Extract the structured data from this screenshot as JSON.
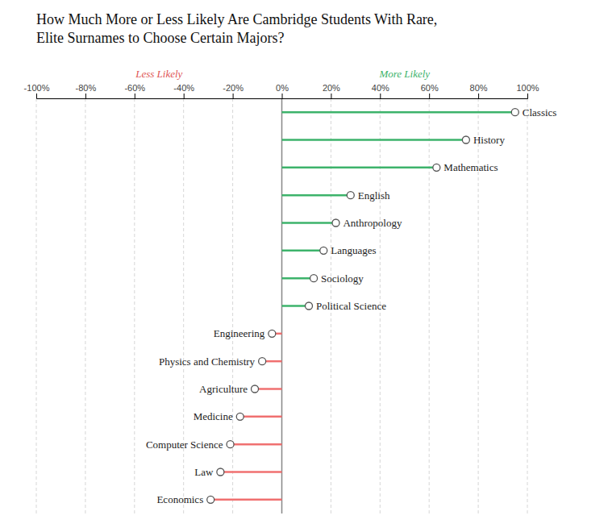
{
  "chart_data": {
    "type": "lollipop",
    "orientation": "horizontal",
    "title": "How Much More or Less Likely Are Cambridge Students With Rare,\nElite Surnames to Choose Certain Majors?",
    "categories": [
      "Classics",
      "History",
      "Mathematics",
      "English",
      "Anthropology",
      "Languages",
      "Sociology",
      "Political Science",
      "Engineering",
      "Physics and Chemistry",
      "Agriculture",
      "Medicine",
      "Computer Science",
      "Law",
      "Economics"
    ],
    "values": [
      95,
      75,
      63,
      28,
      22,
      17,
      13,
      11,
      -4,
      -8,
      -11,
      -17,
      -21,
      -25,
      -29
    ],
    "colors": [
      "#3db36b",
      "#3db36b",
      "#3db36b",
      "#3db36b",
      "#3db36b",
      "#3db36b",
      "#3db36b",
      "#3db36b",
      "#f07070",
      "#f07070",
      "#f07070",
      "#f07070",
      "#f07070",
      "#f07070",
      "#f07070"
    ],
    "xlim": [
      -100,
      100
    ],
    "xticks": [
      {
        "value": -100,
        "label": "-100%"
      },
      {
        "value": -80,
        "label": "-80%"
      },
      {
        "value": -60,
        "label": "-60%"
      },
      {
        "value": -40,
        "label": "-40%"
      },
      {
        "value": -20,
        "label": "-20%"
      },
      {
        "value": 0,
        "label": "0%"
      },
      {
        "value": 20,
        "label": "20%"
      },
      {
        "value": 40,
        "label": "40%"
      },
      {
        "value": 60,
        "label": "60%"
      },
      {
        "value": 80,
        "label": "80%"
      },
      {
        "value": 100,
        "label": "100%"
      }
    ],
    "grid": true,
    "tick_labels": "x",
    "annotations": [
      {
        "text": "Less Likely",
        "x": -50,
        "color": "#e05555"
      },
      {
        "text": "More Likely",
        "x": 50,
        "color": "#3db36b"
      }
    ]
  }
}
